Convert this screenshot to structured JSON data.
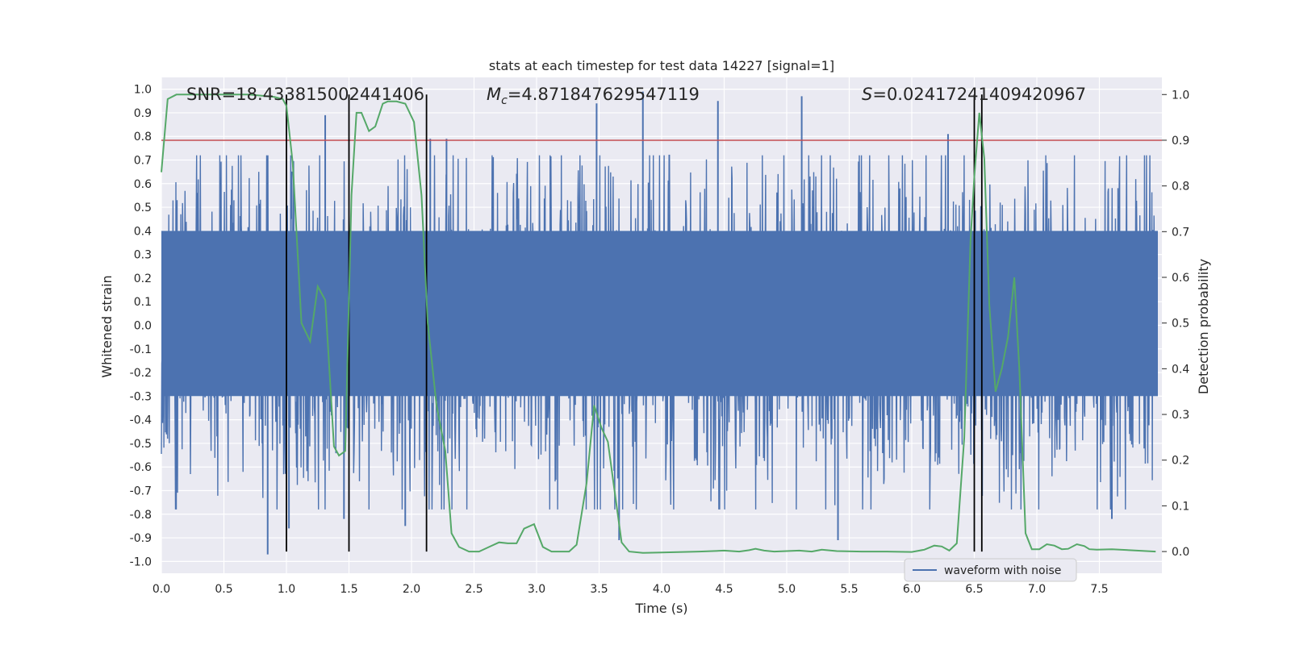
{
  "chart_data": {
    "type": "line",
    "title": "stats at each timestep for test data 14227 [signal=1]",
    "xlabel": "Time (s)",
    "ylabel": "Whitened strain",
    "y2label": "Detection probability",
    "xlim": [
      0.0,
      8.0
    ],
    "ylim": [
      -1.05,
      1.05
    ],
    "y2lim": [
      -0.0475,
      1.0375
    ],
    "grid": true,
    "legend_location": "lower center",
    "x_ticks": [
      "0.0",
      "0.5",
      "1.0",
      "1.5",
      "2.0",
      "2.5",
      "3.0",
      "3.5",
      "4.0",
      "4.5",
      "5.0",
      "5.5",
      "6.0",
      "6.5",
      "7.0",
      "7.5"
    ],
    "y_ticks": [
      "1.0",
      "0.9",
      "0.8",
      "0.7",
      "0.6",
      "0.5",
      "0.4",
      "0.3",
      "0.2",
      "0.1",
      "0.0",
      "-0.1",
      "-0.2",
      "-0.3",
      "-0.4",
      "-0.5",
      "-0.6",
      "-0.7",
      "-0.8",
      "-0.9",
      "-1.0"
    ],
    "y2_ticks": [
      "1.0",
      "0.9",
      "0.8",
      "0.7",
      "0.6",
      "0.5",
      "0.4",
      "0.3",
      "0.2",
      "0.1",
      "0.0"
    ],
    "annotations": {
      "snr": "SNR=18.433815002441406",
      "mc_symbol": "M",
      "mc_sub": "c",
      "mc_value": "=4.871847629547119",
      "s_symbol": "S",
      "s_value": "=0.024172414094209​67"
    },
    "threshold": {
      "y2": 0.9,
      "color": "#c44e52"
    },
    "vertical_markers": [
      1.0,
      1.5,
      2.12,
      6.5,
      6.56
    ],
    "series": [
      {
        "name": "waveform with noise",
        "axis": "left",
        "kind": "noise",
        "color": "#4c72b0",
        "band": [
          -0.3,
          0.4
        ],
        "spikes": [
          {
            "x": 0.85,
            "y": -0.97
          },
          {
            "x": 1.02,
            "y": -0.86
          },
          {
            "x": 1.31,
            "y": 0.89
          },
          {
            "x": 1.46,
            "y": -0.82
          },
          {
            "x": 1.95,
            "y": -0.85
          },
          {
            "x": 2.15,
            "y": 0.79
          },
          {
            "x": 2.28,
            "y": 0.79
          },
          {
            "x": 3.48,
            "y": 0.94
          },
          {
            "x": 3.66,
            "y": -0.91
          },
          {
            "x": 3.85,
            "y": 0.99
          },
          {
            "x": 4.45,
            "y": 0.95
          },
          {
            "x": 5.12,
            "y": 0.97
          },
          {
            "x": 5.41,
            "y": -0.91
          },
          {
            "x": 6.29,
            "y": 0.81
          },
          {
            "x": 7.6,
            "y": -0.82
          }
        ]
      },
      {
        "name": "detection probability",
        "axis": "right",
        "color": "#55a868",
        "x": [
          0.0,
          0.05,
          0.12,
          0.3,
          0.5,
          0.7,
          0.9,
          0.97,
          1.0,
          1.05,
          1.12,
          1.19,
          1.25,
          1.31,
          1.38,
          1.42,
          1.47,
          1.52,
          1.56,
          1.6,
          1.66,
          1.71,
          1.77,
          1.81,
          1.88,
          1.95,
          2.02,
          2.08,
          2.13,
          2.2,
          2.27,
          2.32,
          2.38,
          2.46,
          2.54,
          2.62,
          2.7,
          2.77,
          2.84,
          2.9,
          2.98,
          3.05,
          3.12,
          3.2,
          3.26,
          3.32,
          3.4,
          3.46,
          3.52,
          3.57,
          3.62,
          3.68,
          3.74,
          3.85,
          4.0,
          4.3,
          4.5,
          4.62,
          4.7,
          4.75,
          4.82,
          4.9,
          5.0,
          5.1,
          5.2,
          5.28,
          5.4,
          5.6,
          5.8,
          6.0,
          6.1,
          6.18,
          6.24,
          6.3,
          6.36,
          6.42,
          6.47,
          6.5,
          6.54,
          6.58,
          6.62,
          6.67,
          6.72,
          6.77,
          6.82,
          6.86,
          6.91,
          6.96,
          7.02,
          7.08,
          7.14,
          7.2,
          7.25,
          7.32,
          7.38,
          7.42,
          7.48,
          7.6,
          7.8,
          7.95
        ],
        "y": [
          0.83,
          0.99,
          1.0,
          1.0,
          1.0,
          1.0,
          0.995,
          0.99,
          0.975,
          0.85,
          0.5,
          0.46,
          0.58,
          0.55,
          0.23,
          0.21,
          0.22,
          0.78,
          0.96,
          0.96,
          0.92,
          0.93,
          0.98,
          0.985,
          0.985,
          0.98,
          0.94,
          0.78,
          0.5,
          0.32,
          0.22,
          0.04,
          0.01,
          0.0,
          0.0,
          0.01,
          0.02,
          0.018,
          0.018,
          0.05,
          0.06,
          0.01,
          0.0,
          0.0,
          0.0,
          0.015,
          0.15,
          0.32,
          0.27,
          0.24,
          0.14,
          0.02,
          0.0,
          -0.003,
          -0.002,
          0.0,
          0.002,
          0.0,
          0.003,
          0.006,
          0.002,
          0.0,
          0.001,
          0.002,
          0.0,
          0.004,
          0.001,
          0.0,
          0.0,
          -0.001,
          0.004,
          0.013,
          0.011,
          0.002,
          0.018,
          0.25,
          0.68,
          0.82,
          0.96,
          0.86,
          0.54,
          0.35,
          0.4,
          0.47,
          0.6,
          0.4,
          0.04,
          0.005,
          0.005,
          0.016,
          0.013,
          0.005,
          0.006,
          0.016,
          0.012,
          0.005,
          0.004,
          0.005,
          0.002,
          0.0
        ]
      }
    ]
  },
  "legend": {
    "label": "waveform with noise"
  }
}
